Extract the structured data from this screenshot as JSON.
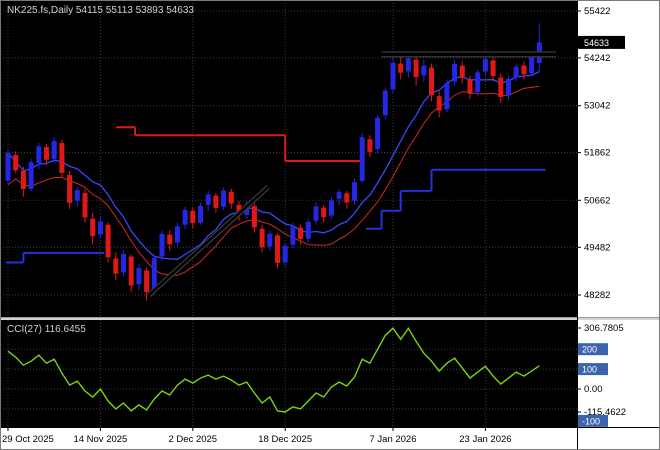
{
  "window": {
    "symbol": "NK225.fs",
    "timeframe": "Daily"
  },
  "colors": {
    "chart_bg": "#000000",
    "axis_bg": "#ffffff",
    "grid": "#3c3c3c",
    "bull": "#2626e6",
    "bear": "#e01818",
    "ma_blue": "#3c46ff",
    "ma_red": "#d02828",
    "step_red": "#e01818",
    "step_blue": "#2233dd",
    "cci": "#7cd411",
    "level_badge": "#3b64ad",
    "price_badge_bg": "#000000",
    "splitter": "#d6d3ce",
    "object_color": "#000000",
    "object_halo": "#3a3a3a"
  },
  "chart_data": [
    {
      "type": "candlestick",
      "title_line": "NK225.fs,Daily 54115 55113 53893 54633",
      "current_bar": {
        "open": 54115,
        "high": 55113,
        "low": 53893,
        "close": 54633
      },
      "current_price": 54633,
      "y_ticks": [
        55422,
        54242,
        53042,
        51862,
        50662,
        49482,
        48282
      ],
      "x_ticks": [
        {
          "bar": 0,
          "label": "29 Oct 2025"
        },
        {
          "bar": 12,
          "label": "14 Nov 2025"
        },
        {
          "bar": 24,
          "label": "2 Dec 2025"
        },
        {
          "bar": 36,
          "label": "18 Dec 2025"
        },
        {
          "bar": 50,
          "label": "7 Jan 2026"
        },
        {
          "bar": 62,
          "label": "23 Jan 2026"
        }
      ],
      "candles": [
        [
          51150,
          51950,
          51050,
          51850
        ],
        [
          51800,
          51900,
          51350,
          51420
        ],
        [
          51400,
          51500,
          50750,
          50950
        ],
        [
          50950,
          51700,
          50900,
          51620
        ],
        [
          51600,
          52100,
          51450,
          52020
        ],
        [
          52000,
          52080,
          51550,
          51680
        ],
        [
          51700,
          52250,
          51600,
          52150
        ],
        [
          52100,
          52180,
          51250,
          51350
        ],
        [
          51300,
          51400,
          50450,
          50600
        ],
        [
          50650,
          51000,
          50500,
          50920
        ],
        [
          50850,
          50950,
          50100,
          50230
        ],
        [
          50200,
          50350,
          49550,
          49760
        ],
        [
          49800,
          50250,
          49700,
          50130
        ],
        [
          50050,
          50100,
          49100,
          49230
        ],
        [
          49200,
          49350,
          48650,
          48820
        ],
        [
          48850,
          49400,
          48750,
          49310
        ],
        [
          49250,
          49300,
          48350,
          48520
        ],
        [
          48550,
          49050,
          48400,
          48960
        ],
        [
          48900,
          48980,
          48150,
          48360
        ],
        [
          48400,
          49300,
          48300,
          49210
        ],
        [
          49250,
          49900,
          49150,
          49820
        ],
        [
          49800,
          49900,
          49400,
          49560
        ],
        [
          49600,
          50100,
          49500,
          50010
        ],
        [
          50050,
          50500,
          49950,
          50420
        ],
        [
          50400,
          50480,
          49950,
          50090
        ],
        [
          50100,
          50600,
          50050,
          50520
        ],
        [
          50550,
          50900,
          50400,
          50810
        ],
        [
          50780,
          50850,
          50350,
          50470
        ],
        [
          50500,
          50980,
          50420,
          50910
        ],
        [
          50880,
          50950,
          50450,
          50580
        ],
        [
          50550,
          50650,
          50150,
          50290
        ],
        [
          50300,
          50650,
          50200,
          50560
        ],
        [
          50520,
          50580,
          49850,
          49980
        ],
        [
          49950,
          50050,
          49350,
          49480
        ],
        [
          49500,
          49900,
          49400,
          49820
        ],
        [
          49780,
          49820,
          48950,
          49090
        ],
        [
          49100,
          49600,
          49000,
          49520
        ],
        [
          49550,
          50100,
          49450,
          50010
        ],
        [
          49980,
          50050,
          49550,
          49690
        ],
        [
          49700,
          50200,
          49600,
          50120
        ],
        [
          50150,
          50600,
          50050,
          50510
        ],
        [
          50480,
          50550,
          50100,
          50240
        ],
        [
          50280,
          50750,
          50200,
          50660
        ],
        [
          50700,
          50950,
          50550,
          50870
        ],
        [
          50840,
          50900,
          50450,
          50610
        ],
        [
          50650,
          51200,
          50550,
          51120
        ],
        [
          51150,
          52350,
          51100,
          52250
        ],
        [
          52200,
          52300,
          51750,
          51880
        ],
        [
          51950,
          52800,
          51850,
          52740
        ],
        [
          52800,
          53500,
          52700,
          53420
        ],
        [
          53450,
          54250,
          53350,
          54120
        ],
        [
          54100,
          54300,
          53700,
          53870
        ],
        [
          53900,
          54350,
          53750,
          54230
        ],
        [
          54200,
          54300,
          53550,
          53760
        ],
        [
          53800,
          54200,
          53650,
          54050
        ],
        [
          54000,
          54100,
          53150,
          53310
        ],
        [
          53280,
          53400,
          52750,
          52920
        ],
        [
          52950,
          53700,
          52880,
          53610
        ],
        [
          53650,
          54200,
          53550,
          54090
        ],
        [
          54050,
          54150,
          53600,
          53740
        ],
        [
          53700,
          53800,
          53200,
          53340
        ],
        [
          53380,
          53950,
          53300,
          53880
        ],
        [
          53900,
          54300,
          53800,
          54210
        ],
        [
          54180,
          54250,
          53650,
          53790
        ],
        [
          53750,
          53850,
          53100,
          53260
        ],
        [
          53300,
          53800,
          53200,
          53720
        ],
        [
          53750,
          54100,
          53650,
          54020
        ],
        [
          54050,
          54150,
          53700,
          53830
        ],
        [
          53860,
          54380,
          53800,
          54290
        ],
        [
          54115,
          55113,
          53893,
          54633
        ]
      ],
      "overlays": {
        "ma_blue": {
          "period": 10,
          "source": "close"
        },
        "ma_red": {
          "period": 10,
          "source": "low"
        },
        "resistance_steps": [
          {
            "from": 14,
            "to": 16.5,
            "price": 52500
          },
          {
            "from": 16.5,
            "to": 36,
            "price": 52300
          },
          {
            "from": 36,
            "to": 46,
            "price": 51650
          }
        ],
        "support_steps_left": [
          {
            "from": -0.3,
            "to": 2,
            "price": 49100
          },
          {
            "from": 2,
            "to": 12.5,
            "price": 49340
          }
        ],
        "support_steps_right": [
          {
            "from": 46.5,
            "to": 48.5,
            "price": 49950
          },
          {
            "from": 48.5,
            "to": 51,
            "price": 50400
          },
          {
            "from": 51,
            "to": 55,
            "price": 50900
          },
          {
            "from": 55,
            "to": 69.8,
            "price": 51430
          }
        ],
        "trendline": {
          "from_bar": 18.3,
          "from_price": 48280,
          "to_bar": 33.8,
          "to_price": 51000
        },
        "resistance_line": {
          "from_bar": 48.5,
          "to_bar": 71.2,
          "price": 54330
        }
      }
    },
    {
      "type": "line",
      "name": "CCI(27)",
      "label": "CCI(27) 116.6455",
      "period": 27,
      "current": 116.6455,
      "ylim": [
        -115.4622,
        306.7805
      ],
      "max_label": "306.7805",
      "zero_label": "0.00",
      "min_label": "-115.4622",
      "levels": [
        200,
        100,
        -100
      ],
      "grid_levels": [
        200,
        100,
        0,
        -100
      ],
      "values": [
        190,
        160,
        120,
        140,
        170,
        130,
        150,
        80,
        20,
        40,
        -10,
        -40,
        0,
        -60,
        -100,
        -70,
        -110,
        -80,
        -105,
        -50,
        -10,
        -30,
        20,
        50,
        30,
        55,
        70,
        50,
        65,
        45,
        20,
        35,
        -20,
        -70,
        -40,
        -110,
        -115.46,
        -90,
        -100,
        -60,
        -20,
        -40,
        10,
        35,
        15,
        60,
        150,
        130,
        200,
        270,
        306,
        250,
        305,
        240,
        180,
        140,
        90,
        130,
        155,
        105,
        55,
        85,
        115,
        65,
        25,
        55,
        85,
        65,
        90,
        116.6455
      ]
    }
  ]
}
